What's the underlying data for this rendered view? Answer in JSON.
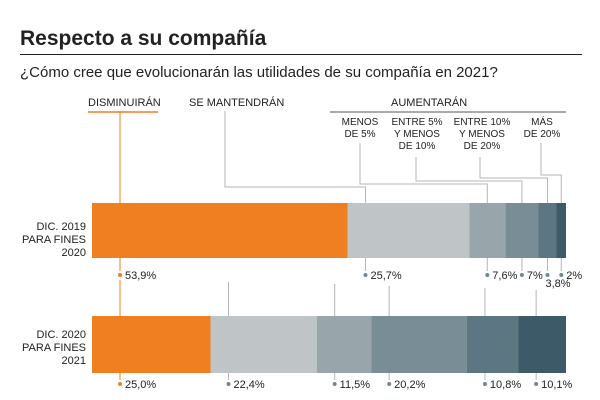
{
  "title": "Respecto a su compañía",
  "question": "¿Cómo cree que evolucionarán las utilidades de su compañía en 2021?",
  "headers": {
    "decrease": "DISMINUIRÁN",
    "same": "SE MANTENDRÁN",
    "increase": "AUMENTARÁN"
  },
  "subheaders": [
    [
      "MENOS",
      "DE 5%"
    ],
    [
      "ENTRE 5%",
      "Y MENOS",
      "DE 10%"
    ],
    [
      "ENTRE 10%",
      "Y MENOS",
      "DE 20%"
    ],
    [
      "MÁS",
      "DE 20%"
    ]
  ],
  "rows": [
    {
      "label_lines": [
        "DIC. 2019",
        "PARA FINES",
        "2020"
      ]
    },
    {
      "label_lines": [
        "DIC. 2020",
        "PARA FINES",
        "2021"
      ]
    }
  ],
  "colors": {
    "decrease": "#f07f22",
    "same": "#bfc5c7",
    "lt5": "#98a6ab",
    "5to10": "#788d96",
    "10to20": "#5c7682",
    "gt20": "#3d5a68",
    "line": "#b5b5b5",
    "dot": "#6f8894"
  },
  "chart_data": {
    "type": "bar",
    "orientation": "horizontal",
    "stacked": true,
    "unit": "%",
    "categories": [
      "DIC. 2019 PARA FINES 2020",
      "DIC. 2020 PARA FINES 2021"
    ],
    "series": [
      {
        "name": "DISMINUIRÁN",
        "values": [
          53.9,
          25.0
        ],
        "labels": [
          "53,9%",
          "25,0%"
        ]
      },
      {
        "name": "SE MANTENDRÁN",
        "values": [
          25.7,
          22.4
        ],
        "labels": [
          "25,7%",
          "22,4%"
        ]
      },
      {
        "name": "MENOS DE 5%",
        "values": [
          7.6,
          11.5
        ],
        "labels": [
          "7,6%",
          "11,5%"
        ]
      },
      {
        "name": "ENTRE 5% Y MENOS DE 10%",
        "values": [
          7.0,
          20.2
        ],
        "labels": [
          "7%",
          "20,2%"
        ]
      },
      {
        "name": "ENTRE 10% Y MENOS DE 20%",
        "values": [
          3.8,
          10.8
        ],
        "labels": [
          "3,8%",
          "10,8%"
        ]
      },
      {
        "name": "MÁS DE 20%",
        "values": [
          2.0,
          10.1
        ],
        "labels": [
          "2%",
          "10,1%"
        ]
      }
    ]
  }
}
